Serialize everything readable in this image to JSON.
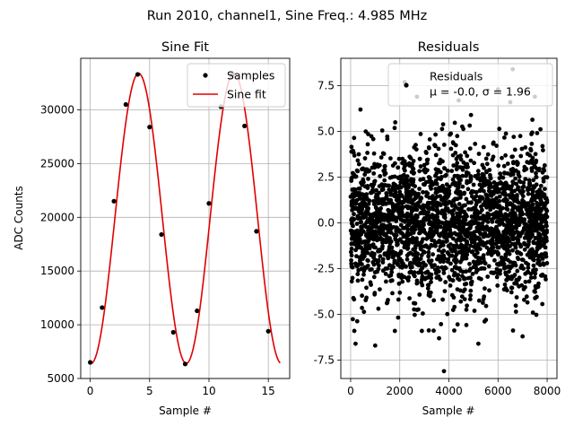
{
  "figure": {
    "suptitle": "Run 2010, channel1, Sine Freq.: 4.985 MHz"
  },
  "colors": {
    "samples": "#000000",
    "fit": "#e00000",
    "grid": "#b0b0b0"
  },
  "chart_data": [
    {
      "type": "line",
      "title": "Sine Fit",
      "xlabel": "Sample #",
      "ylabel": "ADC Counts",
      "xlim": [
        -0.8,
        16.8
      ],
      "ylim": [
        5000,
        34800
      ],
      "xticks": [
        0,
        5,
        10,
        15
      ],
      "yticks": [
        5000,
        10000,
        15000,
        20000,
        25000,
        30000
      ],
      "grid": true,
      "legend_position": "top-right",
      "series": [
        {
          "name": "Samples",
          "kind": "scatter",
          "x": [
            0,
            1,
            2,
            3,
            4,
            5,
            6,
            7,
            8,
            9,
            10,
            11,
            12,
            13,
            14,
            15
          ],
          "y": [
            6500,
            11600,
            21500,
            30500,
            33300,
            28400,
            18400,
            9300,
            6350,
            11300,
            21300,
            30300,
            33300,
            28500,
            18700,
            9400
          ]
        },
        {
          "name": "Sine fit",
          "kind": "line",
          "function": "sine",
          "x_range": [
            0,
            16
          ],
          "offset": 19900,
          "amplitude": 13500,
          "period_samples": 8.02,
          "phase_rad": -1.625
        }
      ]
    },
    {
      "type": "scatter",
      "title": "Residuals",
      "xlabel": "Sample #",
      "ylabel": "",
      "xlim": [
        -400,
        8400
      ],
      "ylim": [
        -8.5,
        9.0
      ],
      "xticks": [
        0,
        2000,
        4000,
        6000,
        8000
      ],
      "yticks": [
        -7.5,
        -5.0,
        -2.5,
        0.0,
        2.5,
        5.0,
        7.5
      ],
      "grid": true,
      "legend_position": "top-right",
      "series": [
        {
          "name": "Residuals",
          "count": 8000,
          "mean": -0.0,
          "std": 1.96,
          "sample_points": [
            [
              3800,
              -8.1
            ],
            [
              6600,
              8.4
            ],
            [
              2200,
              7.7
            ],
            [
              6000,
              7.3
            ],
            [
              7500,
              6.9
            ],
            [
              2700,
              6.9
            ],
            [
              4400,
              6.7
            ],
            [
              400,
              6.2
            ],
            [
              5200,
              -6.6
            ],
            [
              200,
              -6.6
            ],
            [
              1000,
              -6.7
            ],
            [
              3600,
              -6.3
            ],
            [
              7000,
              -6.2
            ],
            [
              2900,
              -5.9
            ],
            [
              150,
              -5.9
            ],
            [
              6500,
              6.6
            ],
            [
              1800,
              -5.9
            ],
            [
              4900,
              5.9
            ]
          ]
        }
      ],
      "legend_stats": "μ = -0.0, σ = 1.96"
    }
  ]
}
